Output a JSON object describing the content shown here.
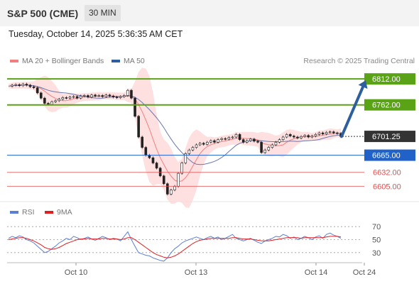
{
  "header": {
    "title": "S&P 500 (CME)",
    "timeframe": "30 MIN",
    "datetime": "Tuesday, October 14, 2025 5:36:35 AM CET"
  },
  "legend": [
    {
      "label": "MA 20 + Bollinger Bands",
      "color": "#f08080"
    },
    {
      "label": "MA 50",
      "color": "#2d5f9e"
    }
  ],
  "copyright": "Research © 2025 Trading Central",
  "chart_data": [
    {
      "type": "candlestick",
      "ylim": [
        6570,
        6830
      ],
      "x_ticks": [
        "Oct 10",
        "Oct 13",
        "Oct 14",
        "Oct 24"
      ],
      "last_price": 6701.25,
      "levels": [
        {
          "value": 6812.0,
          "label": "6812.00",
          "kind": "resistance",
          "color": "#5aa316"
        },
        {
          "value": 6762.0,
          "label": "6762.00",
          "kind": "resistance",
          "color": "#5aa316"
        },
        {
          "value": 6701.25,
          "label": "6701.25",
          "kind": "last-price",
          "color": "#333333"
        },
        {
          "value": 6665.0,
          "label": "6665.00",
          "kind": "pivot",
          "color": "#2062c8"
        },
        {
          "value": 6632.0,
          "label": "6632.00",
          "kind": "support",
          "color": "#e05050"
        },
        {
          "value": 6605.0,
          "label": "6605.00",
          "kind": "support",
          "color": "#e05050"
        }
      ],
      "forecast_arrow": {
        "from": 6701,
        "to": 6812
      },
      "close_path": [
        6798,
        6800,
        6801,
        6799,
        6802,
        6800,
        6797,
        6795,
        6785,
        6775,
        6765,
        6763,
        6768,
        6770,
        6773,
        6776,
        6775,
        6777,
        6778,
        6775,
        6779,
        6780,
        6777,
        6781,
        6779,
        6780,
        6778,
        6781,
        6779,
        6777,
        6776,
        6778,
        6780,
        6790,
        6775,
        6740,
        6700,
        6680,
        6665,
        6660,
        6650,
        6640,
        6625,
        6610,
        6590,
        6598,
        6605,
        6630,
        6650,
        6668,
        6675,
        6680,
        6685,
        6688,
        6686,
        6690,
        6693,
        6690,
        6695,
        6697,
        6696,
        6699,
        6700,
        6705,
        6695,
        6690,
        6693,
        6696,
        6692,
        6690,
        6670,
        6675,
        6680,
        6685,
        6690,
        6695,
        6700,
        6705,
        6702,
        6700,
        6698,
        6701,
        6703,
        6700,
        6702,
        6705,
        6708,
        6706,
        6709,
        6710,
        6708,
        6707,
        6701
      ]
    },
    {
      "type": "line",
      "name": "RSI",
      "legend": [
        {
          "label": "RSI",
          "color": "#5b7fd6"
        },
        {
          "label": "9MA",
          "color": "#e02020"
        }
      ],
      "ylim": [
        20,
        80
      ],
      "y_ticks": [
        70,
        50,
        30
      ],
      "rsi": [
        52,
        55,
        53,
        56,
        54,
        50,
        48,
        45,
        40,
        35,
        30,
        32,
        36,
        40,
        45,
        48,
        52,
        50,
        55,
        53,
        50,
        52,
        54,
        51,
        49,
        52,
        55,
        53,
        50,
        52,
        51,
        48,
        55,
        62,
        50,
        40,
        30,
        28,
        26,
        25,
        22,
        20,
        18,
        17,
        22,
        30,
        36,
        40,
        45,
        48,
        50,
        52,
        54,
        52,
        50,
        53,
        55,
        52,
        54,
        50,
        52,
        55,
        58,
        52,
        50,
        48,
        50,
        52,
        49,
        46,
        44,
        48,
        50,
        52,
        55,
        54,
        58,
        56,
        52,
        54,
        50,
        52,
        55,
        53,
        50,
        54,
        56,
        52,
        58,
        60,
        57,
        55,
        52
      ],
      "ma9": [
        50,
        51,
        52,
        53,
        53,
        52,
        50,
        48,
        45,
        42,
        38,
        36,
        35,
        36,
        38,
        41,
        44,
        46,
        48,
        50,
        51,
        51,
        52,
        51,
        51,
        51,
        52,
        52,
        51,
        51,
        51,
        50,
        51,
        53,
        53,
        50,
        46,
        42,
        38,
        34,
        30,
        27,
        25,
        23,
        22,
        23,
        25,
        28,
        32,
        36,
        40,
        44,
        47,
        49,
        50,
        51,
        52,
        52,
        52,
        52,
        52,
        52,
        53,
        53,
        52,
        51,
        51,
        51,
        50,
        49,
        48,
        48,
        48,
        49,
        50,
        51,
        52,
        53,
        53,
        53,
        53,
        52,
        53,
        53,
        53,
        53,
        53,
        53,
        54,
        55,
        55,
        55,
        54
      ]
    }
  ]
}
